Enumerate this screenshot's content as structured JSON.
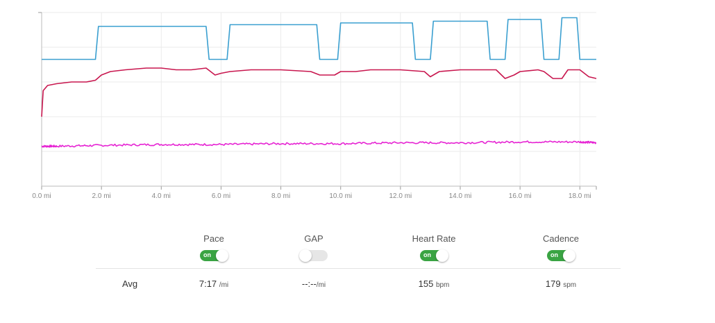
{
  "chart_data": {
    "type": "line",
    "x_ticks": [
      "0.0 mi",
      "2.0 mi",
      "4.0 mi",
      "6.0 mi",
      "8.0 mi",
      "10.0 mi",
      "12.0 mi",
      "14.0 mi",
      "16.0 mi",
      "18.0 mi"
    ],
    "xlim": [
      0,
      18.55
    ],
    "grid": true,
    "series": [
      {
        "color": "#3a9fd0",
        "step": true,
        "x": [
          0,
          1.8,
          1.9,
          5.5,
          5.6,
          6.2,
          6.3,
          9.2,
          9.3,
          9.9,
          10.0,
          12.4,
          12.5,
          13.0,
          13.1,
          14.9,
          15.0,
          15.5,
          15.6,
          16.7,
          16.8,
          17.3,
          17.4,
          17.9,
          18.0,
          18.55
        ],
        "y": [
          73,
          73,
          92,
          92,
          73,
          73,
          93,
          93,
          73,
          73,
          94,
          94,
          73,
          73,
          95,
          95,
          73,
          73,
          96,
          96,
          73,
          73,
          97,
          97,
          73,
          73
        ]
      },
      {
        "color": "#c8164e",
        "x": [
          0,
          0.05,
          0.2,
          0.5,
          1.0,
          1.5,
          1.8,
          2.0,
          2.3,
          2.8,
          3.5,
          4.0,
          4.5,
          5.0,
          5.5,
          5.8,
          6.0,
          6.3,
          7.0,
          8.0,
          9.0,
          9.3,
          9.8,
          10.0,
          10.5,
          11.0,
          12.0,
          12.8,
          13.0,
          13.3,
          14.0,
          14.8,
          15.2,
          15.5,
          15.8,
          16.0,
          16.6,
          16.8,
          17.1,
          17.4,
          17.6,
          18.0,
          18.3,
          18.55
        ],
        "y": [
          40,
          55,
          58,
          59,
          60,
          60,
          61,
          64,
          66,
          67,
          68,
          68,
          67,
          67,
          68,
          64,
          65,
          66,
          67,
          67,
          66,
          64,
          64,
          66,
          66,
          67,
          67,
          66,
          63,
          66,
          67,
          67,
          67,
          62,
          64,
          66,
          67,
          66,
          62,
          62,
          67,
          67,
          63,
          62
        ]
      },
      {
        "color": "#e623d3",
        "x": [
          0,
          0.5,
          2.0,
          4.0,
          6.0,
          8.0,
          10.0,
          12.0,
          14.0,
          16.0,
          18.0,
          18.55
        ],
        "y": [
          23,
          23,
          23.5,
          24,
          24,
          24.5,
          24.5,
          25,
          25,
          25.5,
          25.5,
          25
        ],
        "noise": 0.6
      }
    ]
  },
  "metrics": [
    {
      "label": "Pace",
      "toggle": "on",
      "avg_value": "7:17",
      "avg_unit": "/mi"
    },
    {
      "label": "GAP",
      "toggle": "off",
      "avg_value": "--:--",
      "avg_unit": "/mi"
    },
    {
      "label": "Heart Rate",
      "toggle": "on",
      "avg_value": "155",
      "avg_unit": "bpm"
    },
    {
      "label": "Cadence",
      "toggle": "on",
      "avg_value": "179",
      "avg_unit": "spm"
    }
  ],
  "toggle_on_text": "on",
  "avg_label": "Avg"
}
